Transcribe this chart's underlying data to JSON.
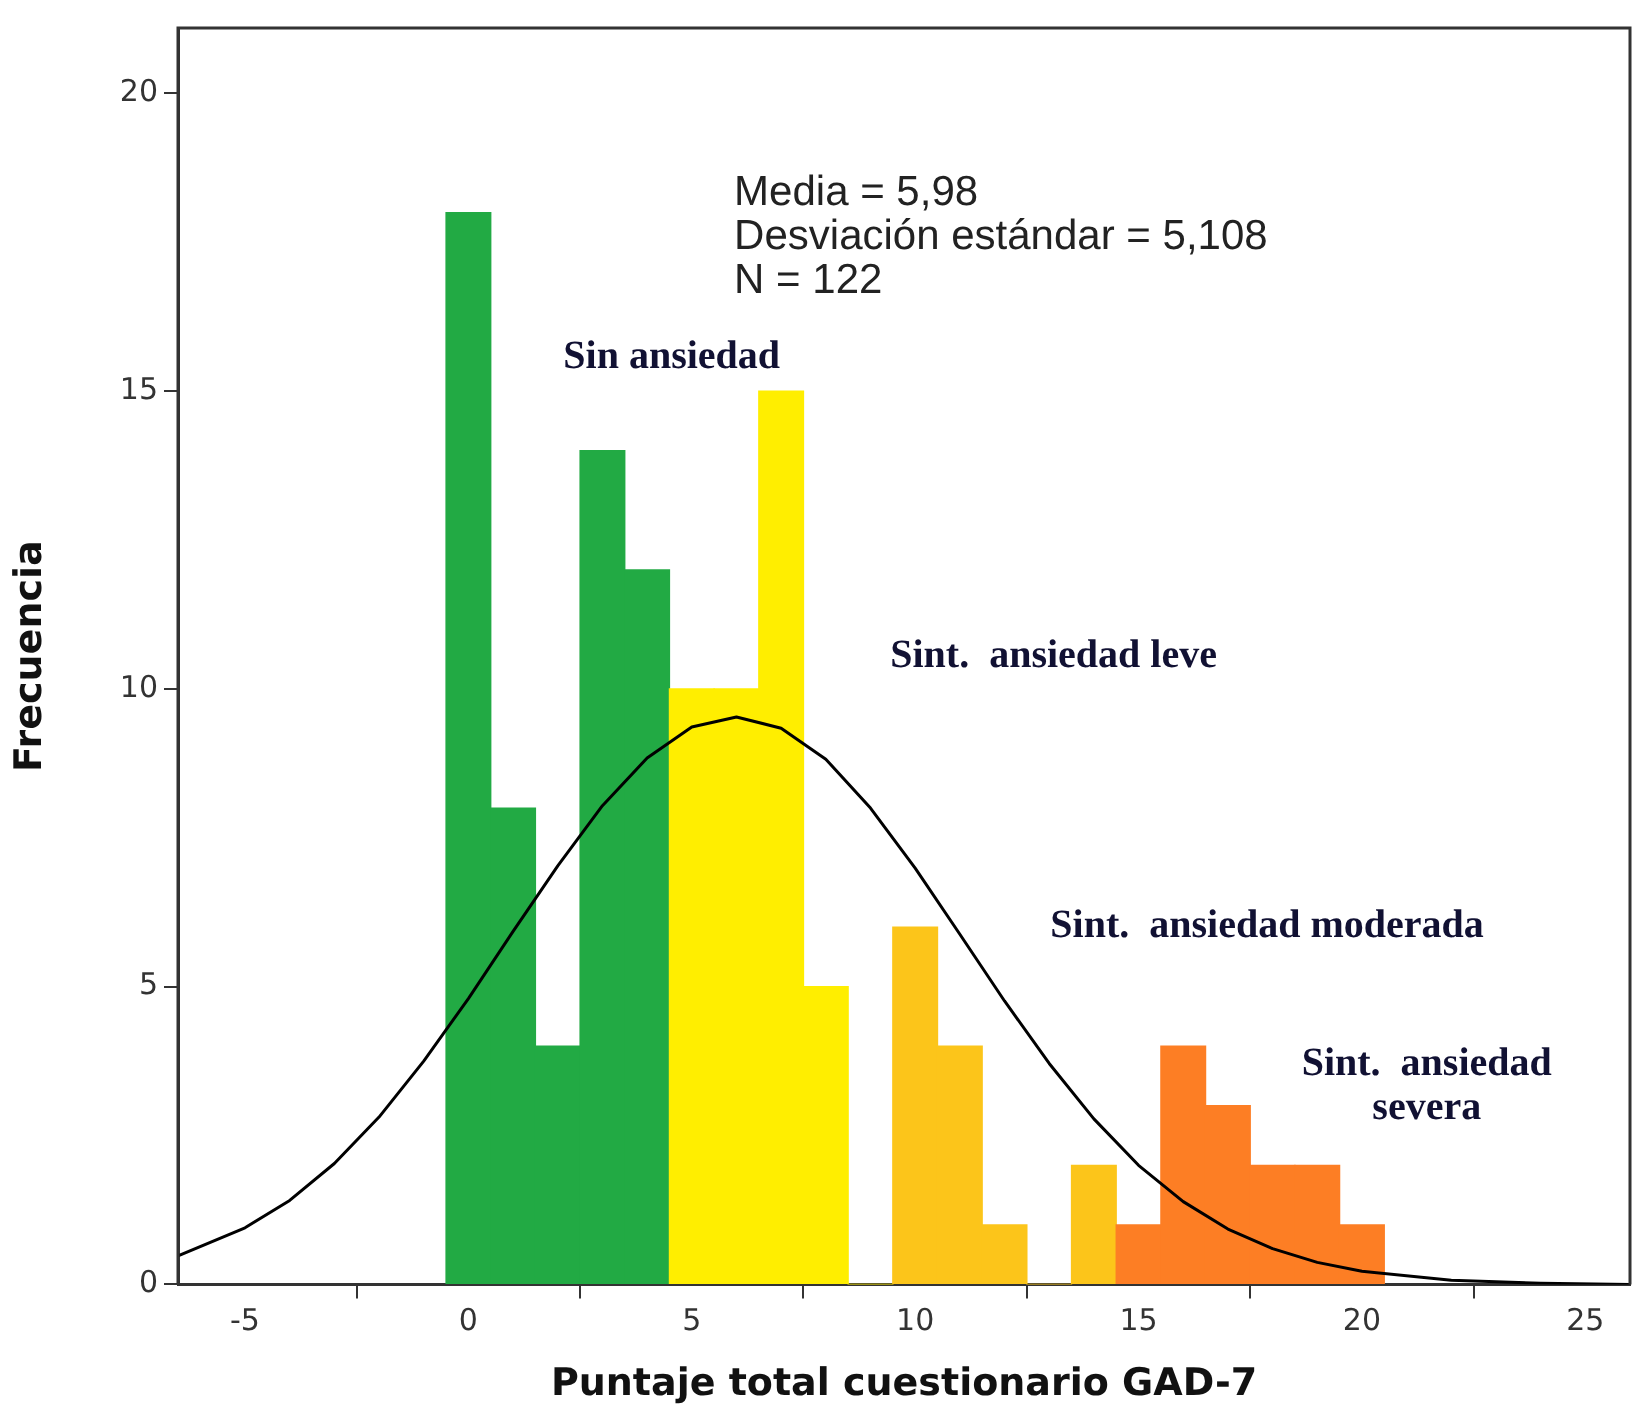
{
  "chart_data": {
    "type": "histogram",
    "xlabel": "Puntaje total cuestionario GAD-7",
    "ylabel": "Frecuencia",
    "bins": [
      -0.5,
      0.5,
      1.5,
      2.5,
      3.5,
      4.5,
      5.5,
      6.5,
      7.5,
      8.5,
      9.5,
      10.5,
      11.5,
      12.5,
      13.5,
      14.5,
      15.5,
      16.5,
      17.5,
      18.5,
      19.5,
      20.5
    ],
    "values": [
      18,
      8,
      4,
      14,
      12,
      10,
      10,
      15,
      5,
      0,
      6,
      4,
      1,
      0,
      2,
      1,
      4,
      3,
      2,
      2,
      1
    ],
    "colors": [
      "#22aa44",
      "#22aa44",
      "#22aa44",
      "#22aa44",
      "#22aa44",
      "#ffee00",
      "#ffee00",
      "#ffee00",
      "#ffee00",
      "#ffee00",
      "#fcc51a",
      "#fcc51a",
      "#fcc51a",
      "#fcc51a",
      "#fcc51a",
      "#fd7e24",
      "#fd7e24",
      "#fd7e24",
      "#fd7e24",
      "#fd7e24",
      "#fd7e24"
    ],
    "series": [
      {
        "type": "line",
        "color": "#000000",
        "x": [
          -6.5,
          -5,
          -4,
          -3,
          -2,
          -1,
          0,
          1,
          2,
          3,
          4,
          5,
          6,
          7,
          8,
          9,
          10,
          11,
          12,
          13,
          14,
          15,
          16,
          17,
          18,
          19,
          20,
          22,
          24,
          26
        ],
        "values": [
          0.48,
          0.95,
          1.41,
          2.03,
          2.81,
          3.75,
          4.8,
          5.93,
          7.03,
          8.04,
          8.84,
          9.36,
          9.53,
          9.34,
          8.82,
          8.0,
          6.99,
          5.88,
          4.76,
          3.71,
          2.78,
          2.0,
          1.39,
          0.93,
          0.6,
          0.37,
          0.22,
          0.07,
          0.02,
          0.0
        ]
      }
    ],
    "xlim": [
      -6.5,
      26
    ],
    "xticks": [
      -5,
      0,
      5,
      10,
      15,
      20,
      25
    ],
    "ylim": [
      0,
      21.1
    ],
    "yticks": [
      0,
      5,
      10,
      15,
      20
    ],
    "grid": false,
    "legend": false,
    "marker": "none",
    "line_style": "solid",
    "annotations": [
      "Media = 5,98\nDesviación estándar = 5,108\nN = 122",
      "Sin ansiedad",
      "Sint.  ansiedad leve",
      "Sint.  ansiedad moderada",
      "Sint.  ansiedad\nsevera"
    ]
  }
}
